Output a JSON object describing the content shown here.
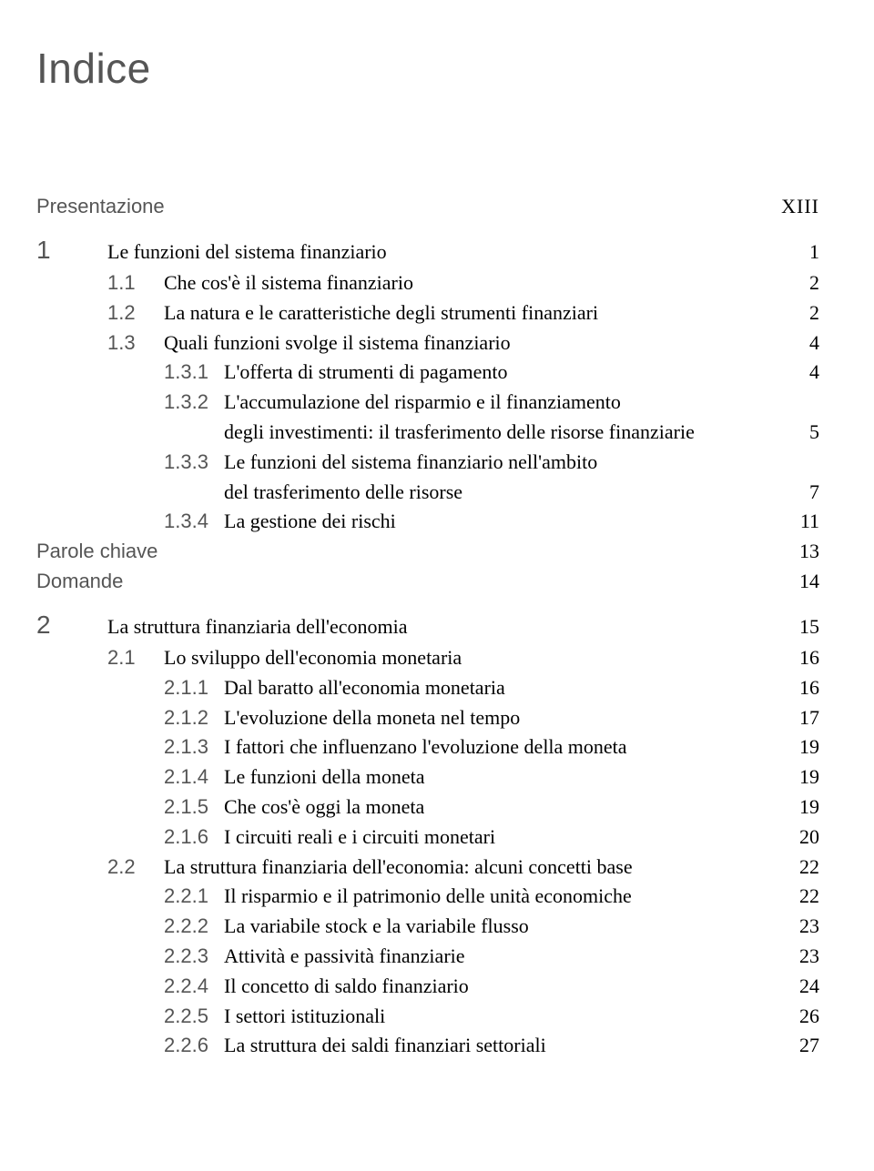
{
  "title": "Indice",
  "entries": [
    {
      "kind": "top-sans",
      "marker": "Presentazione",
      "page": "XIII",
      "sc": true
    },
    {
      "kind": "gap"
    },
    {
      "kind": "ch",
      "marker": "1",
      "text": "Le funzioni del sistema finanziario",
      "page": "1"
    },
    {
      "kind": "sub",
      "marker": "1.1",
      "text": "Che cos'è il sistema finanziario",
      "page": "2"
    },
    {
      "kind": "sub",
      "marker": "1.2",
      "text": "La natura e le caratteristiche degli strumenti finanziari",
      "page": "2"
    },
    {
      "kind": "sub",
      "marker": "1.3",
      "text": "Quali funzioni svolge il sistema finanziario",
      "page": "4"
    },
    {
      "kind": "subsub",
      "marker": "1.3.1",
      "text": "L'offerta di strumenti di pagamento",
      "page": "4"
    },
    {
      "kind": "subsub",
      "marker": "1.3.2",
      "text": "L'accumulazione del risparmio e il finanziamento",
      "page": ""
    },
    {
      "kind": "cont-subsub",
      "text": "degli investimenti: il trasferimento delle risorse finanziarie",
      "page": "5"
    },
    {
      "kind": "subsub",
      "marker": "1.3.3",
      "text": "Le funzioni del sistema finanziario nell'ambito",
      "page": ""
    },
    {
      "kind": "cont-subsub",
      "text": "del trasferimento delle risorse",
      "page": "7"
    },
    {
      "kind": "subsub",
      "marker": "1.3.4",
      "text": "La gestione dei rischi",
      "page": "11"
    },
    {
      "kind": "top-sans",
      "marker": "Parole chiave",
      "page": "13"
    },
    {
      "kind": "top-sans",
      "marker": "Domande",
      "page": "14"
    },
    {
      "kind": "gap"
    },
    {
      "kind": "ch",
      "marker": "2",
      "text": "La struttura finanziaria dell'economia",
      "page": "15"
    },
    {
      "kind": "sub",
      "marker": "2.1",
      "text": "Lo sviluppo dell'economia monetaria",
      "page": "16"
    },
    {
      "kind": "subsub",
      "marker": "2.1.1",
      "text": "Dal baratto all'economia monetaria",
      "page": "16"
    },
    {
      "kind": "subsub",
      "marker": "2.1.2",
      "text": "L'evoluzione della moneta nel tempo",
      "page": "17"
    },
    {
      "kind": "subsub",
      "marker": "2.1.3",
      "text": "I fattori che influenzano l'evoluzione della moneta",
      "page": "19"
    },
    {
      "kind": "subsub",
      "marker": "2.1.4",
      "text": "Le funzioni della moneta",
      "page": "19"
    },
    {
      "kind": "subsub",
      "marker": "2.1.5",
      "text": "Che cos'è oggi la moneta",
      "page": "19"
    },
    {
      "kind": "subsub",
      "marker": "2.1.6",
      "text": "I circuiti reali e i circuiti monetari",
      "page": "20"
    },
    {
      "kind": "sub",
      "marker": "2.2",
      "text": "La struttura finanziaria dell'economia: alcuni concetti base",
      "page": "22"
    },
    {
      "kind": "subsub",
      "marker": "2.2.1",
      "text": "Il risparmio e il patrimonio delle unità economiche",
      "page": "22"
    },
    {
      "kind": "subsub",
      "marker": "2.2.2",
      "text": "La variabile stock e la variabile flusso",
      "page": "23"
    },
    {
      "kind": "subsub",
      "marker": "2.2.3",
      "text": "Attività e passività finanziarie",
      "page": "23"
    },
    {
      "kind": "subsub",
      "marker": "2.2.4",
      "text": "Il concetto di saldo finanziario",
      "page": "24"
    },
    {
      "kind": "subsub",
      "marker": "2.2.5",
      "text": "I settori istituzionali",
      "page": "26"
    },
    {
      "kind": "subsub",
      "marker": "2.2.6",
      "text": "La struttura dei saldi finanziari settoriali",
      "page": "27"
    }
  ]
}
